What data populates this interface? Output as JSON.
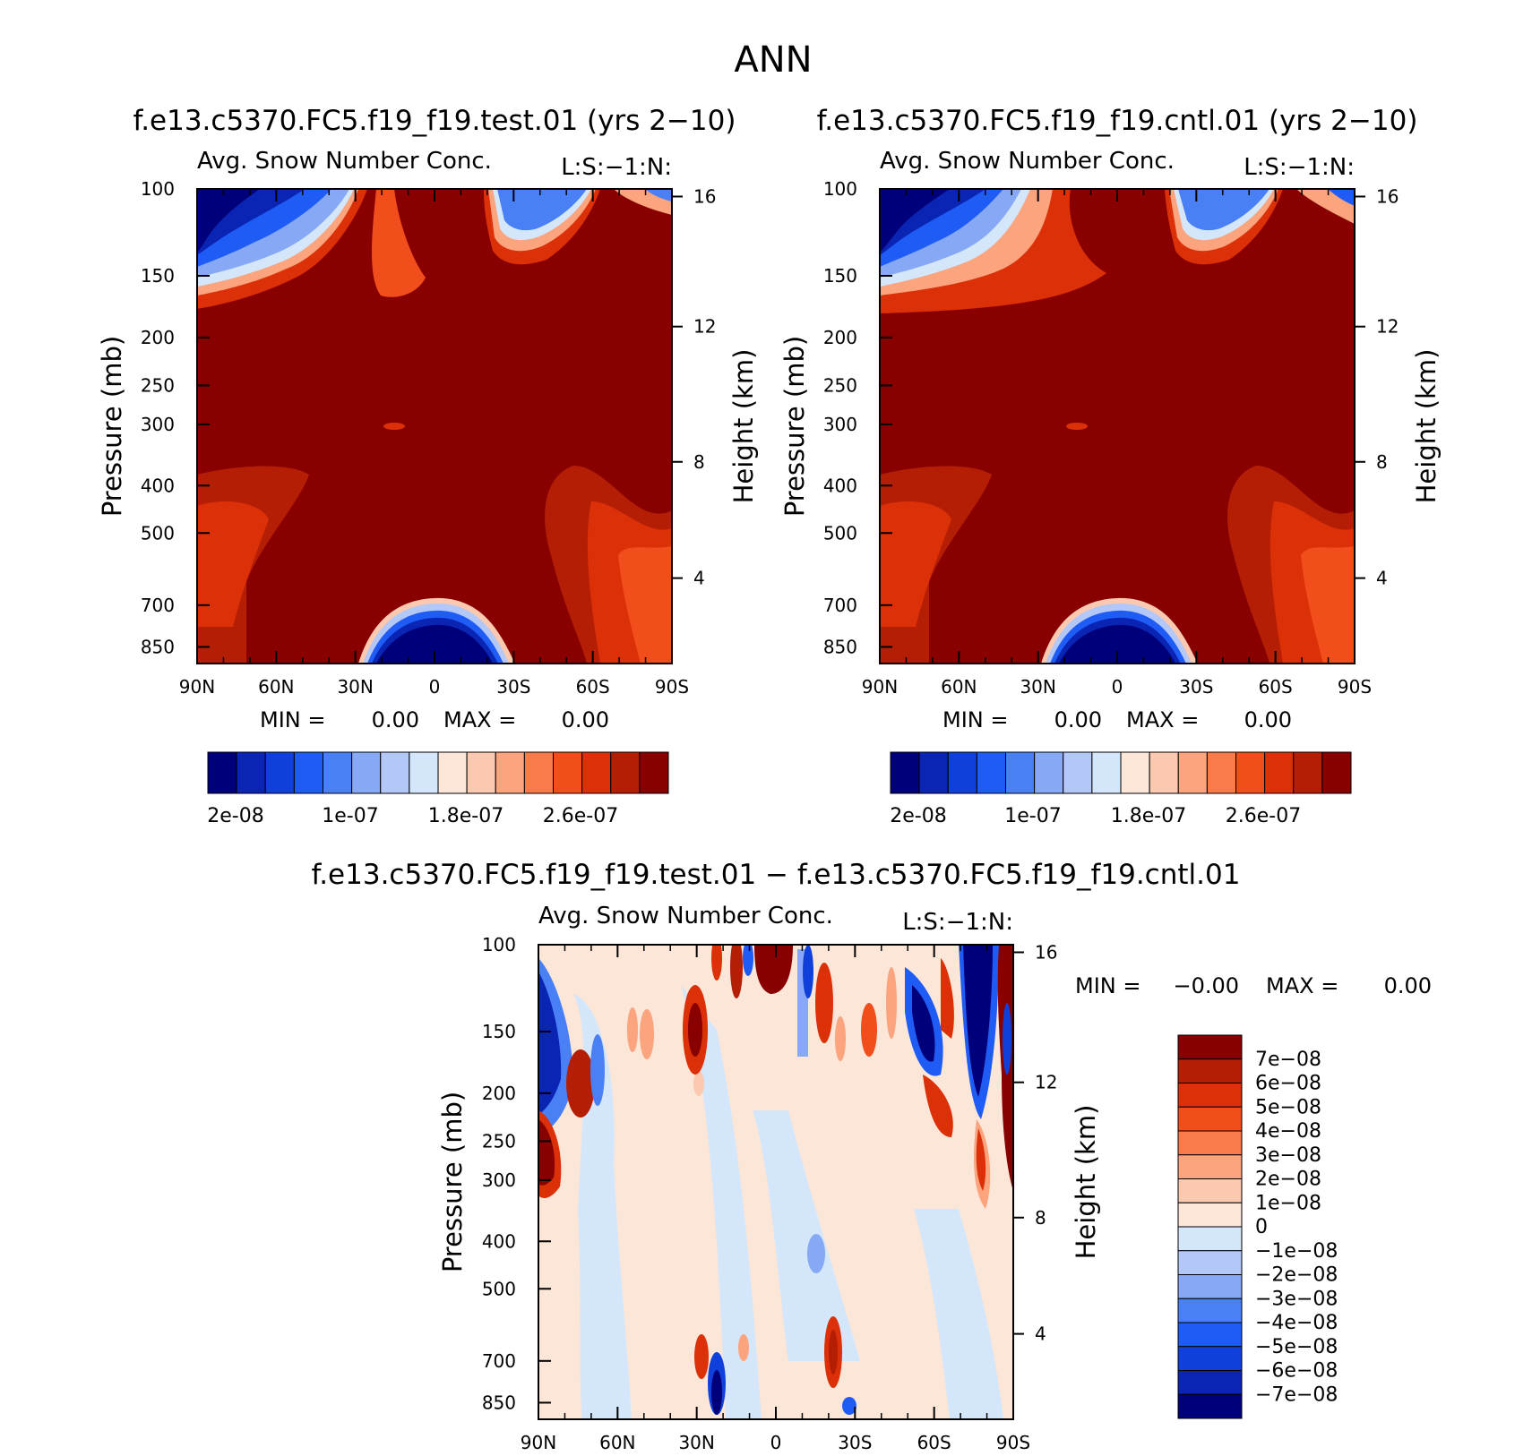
{
  "page": {
    "title": "ANN"
  },
  "chart_data": [
    {
      "type": "heatmap",
      "panel": "test",
      "title": "f.e13.c5370.FC5.f19_f19.test.01 (yrs 2−10)",
      "subtitle": "Avg. Snow Number Conc.",
      "units_label": "L:S:−1:N:",
      "xlabel": "",
      "ylabel": "Pressure (mb)",
      "y2label": "Height (km)",
      "x_ticks": [
        "90N",
        "60N",
        "30N",
        "0",
        "30S",
        "60S",
        "90S"
      ],
      "y_ticks": [
        "100",
        "150",
        "200",
        "250",
        "300",
        "400",
        "500",
        "700",
        "850"
      ],
      "y2_ticks": [
        "16",
        "12",
        "8",
        "4"
      ],
      "stats": {
        "min_label": "MIN =",
        "min": "0.00",
        "max_label": "MAX =",
        "max": "0.00"
      },
      "colorbar_labels": [
        "2e-08",
        "1e-07",
        "1.8e-07",
        "2.6e-07"
      ],
      "grid": false
    },
    {
      "type": "heatmap",
      "panel": "control",
      "title": "f.e13.c5370.FC5.f19_f19.cntl.01 (yrs 2−10)",
      "subtitle": "Avg. Snow Number Conc.",
      "units_label": "L:S:−1:N:",
      "xlabel": "",
      "ylabel": "Pressure (mb)",
      "y2label": "Height (km)",
      "x_ticks": [
        "90N",
        "60N",
        "30N",
        "0",
        "30S",
        "60S",
        "90S"
      ],
      "y_ticks": [
        "100",
        "150",
        "200",
        "250",
        "300",
        "400",
        "500",
        "700",
        "850"
      ],
      "y2_ticks": [
        "16",
        "12",
        "8",
        "4"
      ],
      "stats": {
        "min_label": "MIN =",
        "min": "0.00",
        "max_label": "MAX =",
        "max": "0.00"
      },
      "colorbar_labels": [
        "2e-08",
        "1e-07",
        "1.8e-07",
        "2.6e-07"
      ],
      "grid": false
    },
    {
      "type": "heatmap",
      "panel": "difference",
      "title": "f.e13.c5370.FC5.f19_f19.test.01 − f.e13.c5370.FC5.f19_f19.cntl.01",
      "subtitle": "Avg. Snow Number Conc.",
      "units_label": "L:S:−1:N:",
      "xlabel": "",
      "ylabel": "Pressure (mb)",
      "y2label": "Height (km)",
      "x_ticks": [
        "90N",
        "60N",
        "30N",
        "0",
        "30S",
        "60S",
        "90S"
      ],
      "y_ticks": [
        "100",
        "150",
        "200",
        "250",
        "300",
        "400",
        "500",
        "700",
        "850"
      ],
      "y2_ticks": [
        "16",
        "12",
        "8",
        "4"
      ],
      "stats": {
        "min_label": "MIN =",
        "min": "−0.00",
        "max_label": "MAX =",
        "max": "0.00"
      },
      "colorbar_labels": [
        "7e−08",
        "6e−08",
        "5e−08",
        "4e−08",
        "3e−08",
        "2e−08",
        "1e−08",
        "0",
        "−1e−08",
        "−2e−08",
        "−3e−08",
        "−4e−08",
        "−5e−08",
        "−6e−08",
        "−7e−08"
      ],
      "grid": false
    }
  ],
  "palettes": {
    "abs": [
      "#00007a",
      "#0a24b4",
      "#1040dc",
      "#1e5cf5",
      "#4a80f5",
      "#86a8f5",
      "#b4c8f8",
      "#d4e6fa",
      "#fbe6d8",
      "#fbc8b0",
      "#fba47e",
      "#fa7a4a",
      "#f24e1c",
      "#dc3008",
      "#b41e05",
      "#880000"
    ],
    "diff": [
      "#880000",
      "#b41e05",
      "#dc3008",
      "#f24e1c",
      "#fa7a4a",
      "#fba47e",
      "#fbc8b0",
      "#fbe6d8",
      "#d4e6fa",
      "#b4c8f8",
      "#86a8f5",
      "#4a80f5",
      "#1e5cf5",
      "#1040dc",
      "#0a24b4",
      "#00007a"
    ]
  }
}
